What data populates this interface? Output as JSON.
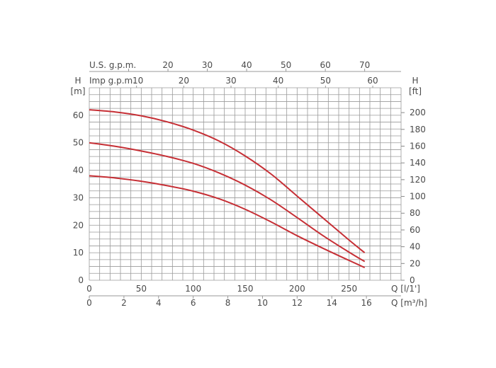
{
  "chart_data": {
    "type": "line",
    "title": "",
    "xlabel": "Q [l/1']",
    "xlabel_secondary": "Q [m³/h]",
    "ylabel_left_top": "H",
    "ylabel_left_unit": "[m]",
    "ylabel_right_top": "H",
    "ylabel_right_unit": "[ft]",
    "top_axis_us_label": "U.S. g.p.m.",
    "top_axis_imp_label": "Imp g.p.m.",
    "xlim": [
      0,
      300
    ],
    "ylim": [
      0,
      70
    ],
    "grid": true,
    "x_ticks": [
      0,
      50,
      100,
      150,
      200,
      250
    ],
    "m3h_ticks": [
      0,
      2,
      4,
      6,
      8,
      10,
      12,
      14,
      16
    ],
    "y_ticks": [
      0,
      10,
      20,
      30,
      40,
      50,
      60
    ],
    "ft_ticks": [
      0,
      20,
      40,
      60,
      80,
      100,
      120,
      140,
      160,
      180,
      200
    ],
    "us_gpm_ticks": [
      20,
      30,
      40,
      50,
      60,
      70
    ],
    "imp_gpm_ticks": [
      10,
      20,
      30,
      40,
      50,
      60
    ],
    "curve_color": "#c62f35",
    "grid_color": "#9a9a9a",
    "series": [
      {
        "x": [
          0,
          25,
          50,
          75,
          100,
          125,
          150,
          175,
          200,
          225,
          250,
          265
        ],
        "y": [
          62,
          61.2,
          59.8,
          57.6,
          54.6,
          50.6,
          45.2,
          38.6,
          30.6,
          22.6,
          14.6,
          10
        ]
      },
      {
        "x": [
          0,
          25,
          50,
          75,
          100,
          125,
          150,
          175,
          200,
          225,
          250,
          265
        ],
        "y": [
          50,
          48.7,
          47,
          45,
          42.5,
          39,
          34.6,
          29.2,
          22.8,
          16.2,
          10.2,
          6.8
        ]
      },
      {
        "x": [
          0,
          25,
          50,
          75,
          100,
          125,
          150,
          175,
          200,
          225,
          250,
          265
        ],
        "y": [
          38,
          37.2,
          36,
          34.4,
          32.4,
          29.6,
          25.8,
          21.2,
          16.2,
          11.6,
          7.2,
          4.6
        ]
      }
    ]
  }
}
